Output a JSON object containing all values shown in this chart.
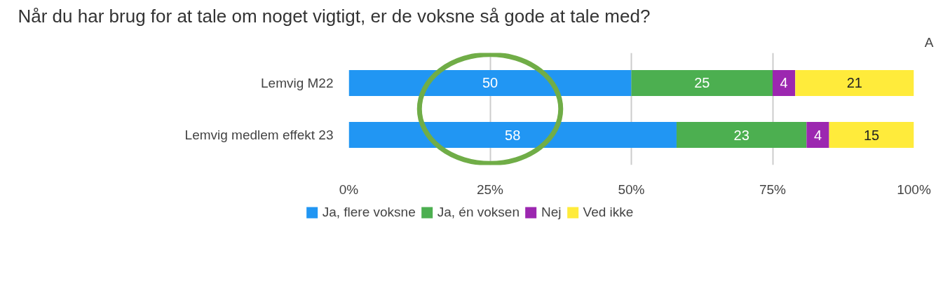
{
  "chart_data": {
    "type": "bar",
    "orientation": "horizontal",
    "stacked": true,
    "title": "Når du har brug for at tale om noget vigtigt, er de voksne så gode at tale med?",
    "categories": [
      "Lemvig M22",
      "Lemvig medlem effekt 23"
    ],
    "series": [
      {
        "name": "Ja, flere voksne",
        "color": "#2196f3",
        "values": [
          50,
          58
        ]
      },
      {
        "name": "Ja, én voksen",
        "color": "#4caf50",
        "values": [
          25,
          23
        ]
      },
      {
        "name": "Nej",
        "color": "#9c27b0",
        "values": [
          4,
          4
        ]
      },
      {
        "name": "Ved ikke",
        "color": "#ffeb3b",
        "values": [
          21,
          15
        ]
      }
    ],
    "xlim": [
      0,
      100
    ],
    "xticks": [
      {
        "value": 0,
        "label": "0%"
      },
      {
        "value": 25,
        "label": "25%"
      },
      {
        "value": 50,
        "label": "50%"
      },
      {
        "value": 75,
        "label": "75%"
      },
      {
        "value": 100,
        "label": "100%"
      }
    ],
    "grid": "x",
    "legend": "bottom",
    "data_labels": true,
    "annotations": [
      "A"
    ]
  }
}
